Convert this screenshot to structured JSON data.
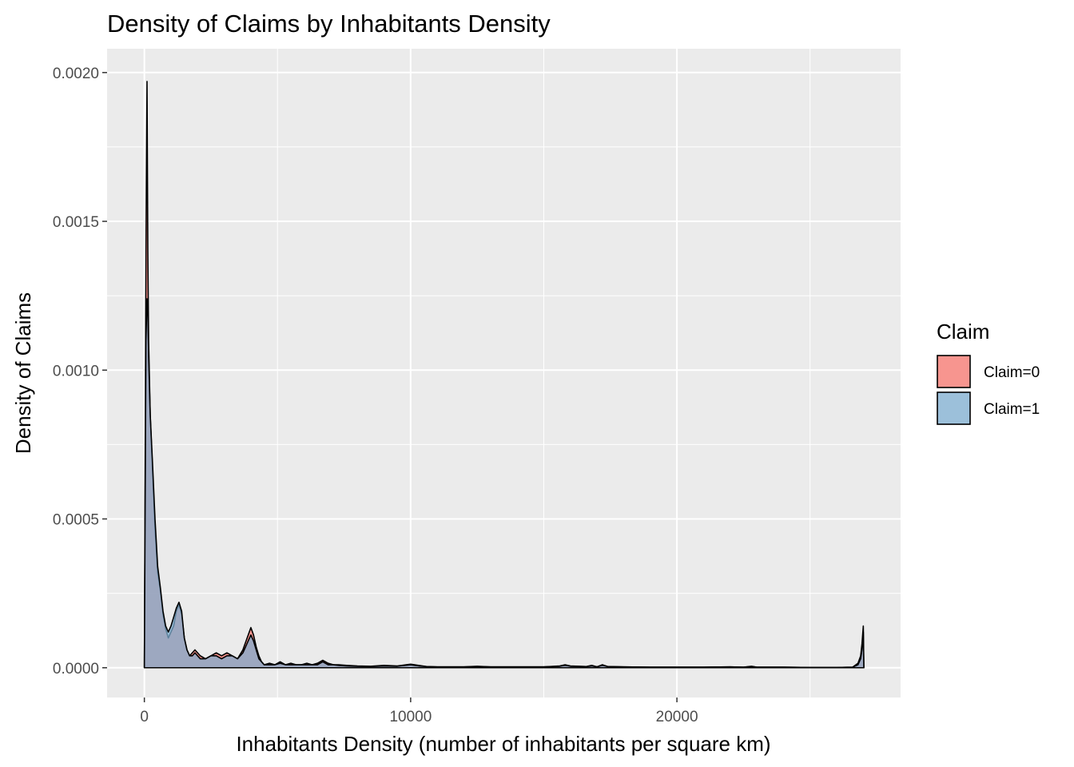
{
  "chart_data": {
    "type": "area",
    "title": "Density of Claims by Inhabitants Density",
    "xlabel": "Inhabitants Density (number of inhabitants per square km)",
    "ylabel": "Density of Claims",
    "xlim": [
      -1400,
      28400
    ],
    "ylim": [
      -0.0001,
      0.00208
    ],
    "x_ticks": [
      0,
      10000,
      20000
    ],
    "x_tick_labels": [
      "0",
      "10000",
      "20000"
    ],
    "x_minor_ticks": [
      5000,
      15000,
      25000
    ],
    "y_ticks": [
      0.0,
      0.0005,
      0.001,
      0.0015,
      0.002
    ],
    "y_tick_labels": [
      "0.0000",
      "0.0005",
      "0.0010",
      "0.0015",
      "0.0020"
    ],
    "y_minor_ticks": [
      0.00025,
      0.00075,
      0.00125,
      0.00175
    ],
    "grid": true,
    "legend": {
      "title": "Claim",
      "position": "right",
      "entries": [
        "Claim=0",
        "Claim=1"
      ]
    },
    "series": [
      {
        "name": "Claim=0",
        "color": "#F8766D",
        "x": [
          0,
          60,
          100,
          130,
          160,
          220,
          300,
          400,
          500,
          600,
          700,
          800,
          900,
          1000,
          1100,
          1200,
          1300,
          1400,
          1500,
          1600,
          1700,
          1800,
          1900,
          2000,
          2100,
          2300,
          2500,
          2700,
          2900,
          3100,
          3300,
          3500,
          3700,
          3900,
          4000,
          4100,
          4200,
          4300,
          4400,
          4500,
          4700,
          4900,
          5100,
          5300,
          5500,
          5700,
          5900,
          6100,
          6300,
          6500,
          6700,
          6900,
          7100,
          7300,
          7600,
          8000,
          8500,
          9000,
          9500,
          10000,
          10300,
          10600,
          11000,
          12000,
          12500,
          13000,
          14000,
          15000,
          15600,
          15800,
          16000,
          16600,
          16800,
          17000,
          17200,
          17400,
          18000,
          19000,
          20000,
          21000,
          22000,
          22500,
          22800,
          23000,
          24000,
          25000,
          26000,
          26600,
          26800,
          26900,
          26950,
          27000,
          27020
        ],
        "y": [
          0.0,
          0.0014,
          0.00197,
          0.0014,
          0.0011,
          0.00085,
          0.00068,
          0.00047,
          0.00032,
          0.00026,
          0.00018,
          0.00013,
          0.0001,
          0.00012,
          0.00014,
          0.00019,
          0.00021,
          0.00018,
          0.0001,
          6e-05,
          4e-05,
          5e-05,
          6e-05,
          5e-05,
          4e-05,
          3e-05,
          4e-05,
          5e-05,
          4e-05,
          5e-05,
          4e-05,
          3e-05,
          6e-05,
          0.00011,
          0.000135,
          0.00011,
          7e-05,
          4e-05,
          2e-05,
          1e-05,
          1.5e-05,
          1e-05,
          2e-05,
          1e-05,
          1.5e-05,
          1e-05,
          1e-05,
          1.5e-05,
          1e-05,
          1.5e-05,
          2.5e-05,
          1.5e-05,
          1e-05,
          1e-05,
          8e-06,
          6e-06,
          5e-06,
          8e-06,
          6e-06,
          1.2e-05,
          8e-06,
          4e-06,
          3e-06,
          3e-06,
          5e-06,
          3e-06,
          3e-06,
          3e-06,
          6e-06,
          1e-05,
          6e-06,
          4e-06,
          8e-06,
          3e-06,
          1e-05,
          4e-06,
          3e-06,
          2e-06,
          2e-06,
          2e-06,
          3e-06,
          2e-06,
          5e-06,
          2e-06,
          2e-06,
          1e-06,
          1e-06,
          2e-06,
          1.5e-05,
          4e-05,
          8e-05,
          0.00014,
          0.0
        ]
      },
      {
        "name": "Claim=1",
        "color": "#7FAFD1",
        "x": [
          0,
          60,
          100,
          130,
          160,
          220,
          300,
          400,
          500,
          600,
          700,
          800,
          900,
          1000,
          1100,
          1200,
          1300,
          1400,
          1500,
          1600,
          1700,
          1800,
          1900,
          2000,
          2100,
          2300,
          2500,
          2700,
          2900,
          3100,
          3300,
          3500,
          3700,
          3900,
          4000,
          4100,
          4200,
          4300,
          4400,
          4500,
          4700,
          4900,
          5100,
          5300,
          5500,
          5700,
          5900,
          6100,
          6300,
          6500,
          6700,
          6900,
          7100,
          7300,
          7600,
          8000,
          8500,
          9000,
          9500,
          10000,
          10300,
          10600,
          11000,
          12000,
          12500,
          13000,
          14000,
          15000,
          15600,
          15800,
          16000,
          16600,
          16800,
          17000,
          17200,
          17400,
          18000,
          19000,
          20000,
          21000,
          22000,
          22500,
          22800,
          23000,
          24000,
          25000,
          26000,
          26600,
          26800,
          26900,
          26950,
          27000,
          27020
        ],
        "y": [
          0.0,
          0.0011,
          0.00124,
          0.0012,
          0.00105,
          0.00085,
          0.0007,
          0.0005,
          0.00034,
          0.00027,
          0.00019,
          0.00014,
          0.00012,
          0.00014,
          0.00017,
          0.0002,
          0.00022,
          0.00019,
          0.0001,
          6e-05,
          4e-05,
          4e-05,
          5e-05,
          4e-05,
          3e-05,
          3e-05,
          4e-05,
          4e-05,
          3e-05,
          4e-05,
          4e-05,
          3e-05,
          5e-05,
          9e-05,
          0.00011,
          9e-05,
          6e-05,
          3e-05,
          2e-05,
          1e-05,
          1e-05,
          1e-05,
          1.5e-05,
          1e-05,
          1e-05,
          1e-05,
          1e-05,
          1e-05,
          1e-05,
          1e-05,
          2e-05,
          1e-05,
          1e-05,
          8e-06,
          6e-06,
          5e-06,
          4e-06,
          6e-06,
          5e-06,
          1e-05,
          6e-06,
          4e-06,
          3e-06,
          3e-06,
          4e-06,
          3e-06,
          3e-06,
          3e-06,
          5e-06,
          8e-06,
          5e-06,
          4e-06,
          6e-06,
          3e-06,
          8e-06,
          4e-06,
          3e-06,
          2e-06,
          2e-06,
          2e-06,
          3e-06,
          2e-06,
          4e-06,
          2e-06,
          2e-06,
          1e-06,
          1e-06,
          2e-06,
          1e-05,
          3e-05,
          6e-05,
          0.00012,
          0.0
        ]
      }
    ]
  }
}
